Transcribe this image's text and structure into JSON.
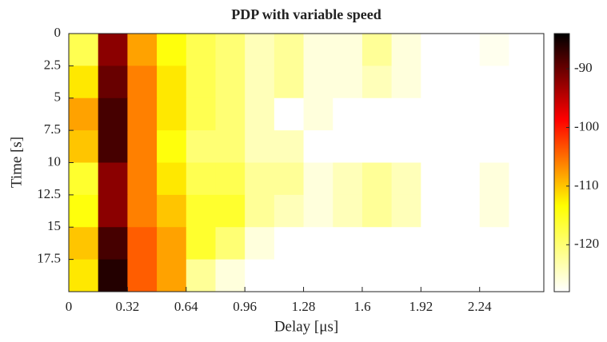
{
  "chart_data": {
    "type": "heatmap",
    "title": "PDP with variable speed",
    "xlabel": "Delay [μs]",
    "ylabel": "Time [s]",
    "xbins": [
      0,
      0.16,
      0.32,
      0.48,
      0.64,
      0.8,
      0.96,
      1.12,
      1.28,
      1.44,
      1.6,
      1.76,
      1.92,
      2.08,
      2.24,
      2.4,
      2.56
    ],
    "ybins": [
      0,
      2.5,
      5,
      7.5,
      10,
      12.5,
      15,
      17.5,
      20
    ],
    "values": [
      [
        -118,
        -92,
        -108,
        -114,
        -118,
        -120,
        -124,
        -122,
        -126,
        -126,
        -122,
        -126,
        -128,
        -128,
        -127,
        -128
      ],
      [
        -112,
        -90,
        -106,
        -112,
        -118,
        -120,
        -124,
        -122,
        -126,
        -126,
        -124,
        -126,
        -128,
        -128,
        -128,
        -128
      ],
      [
        -108,
        -88,
        -106,
        -112,
        -118,
        -120,
        -124,
        -128,
        -126,
        -128,
        -128,
        -128,
        -128,
        -128,
        -128,
        -128
      ],
      [
        -110,
        -88,
        -106,
        -114,
        -120,
        -120,
        -124,
        -124,
        -128,
        -128,
        -128,
        -128,
        -128,
        -128,
        -128,
        -128
      ],
      [
        -116,
        -92,
        -106,
        -112,
        -118,
        -118,
        -122,
        -122,
        -126,
        -124,
        -122,
        -124,
        -128,
        -128,
        -126,
        -128
      ],
      [
        -114,
        -92,
        -106,
        -110,
        -116,
        -116,
        -122,
        -124,
        -126,
        -124,
        -122,
        -124,
        -128,
        -128,
        -126,
        -128
      ],
      [
        -110,
        -88,
        -104,
        -108,
        -116,
        -120,
        -126,
        -128,
        -128,
        -128,
        -128,
        -128,
        -128,
        -128,
        -128,
        -128
      ],
      [
        -112,
        -86,
        -104,
        -108,
        -122,
        -126,
        -128,
        -128,
        -128,
        -128,
        -128,
        -128,
        -128,
        -128,
        -128,
        -128
      ]
    ],
    "xlim": [
      0,
      2.59
    ],
    "xticks": [
      0,
      0.32,
      0.64,
      0.96,
      1.28,
      1.6,
      1.92,
      2.24
    ],
    "ylim": [
      0,
      20
    ],
    "yticks": [
      0,
      2.5,
      5,
      7.5,
      10,
      12.5,
      15,
      17.5
    ],
    "y_reversed": true,
    "clim": [
      -128,
      -84
    ],
    "cticks": [
      -120,
      -110,
      -100,
      -90
    ],
    "colormap": [
      "#ffffff",
      "#ffff00",
      "#ff0000",
      "#000000"
    ]
  }
}
